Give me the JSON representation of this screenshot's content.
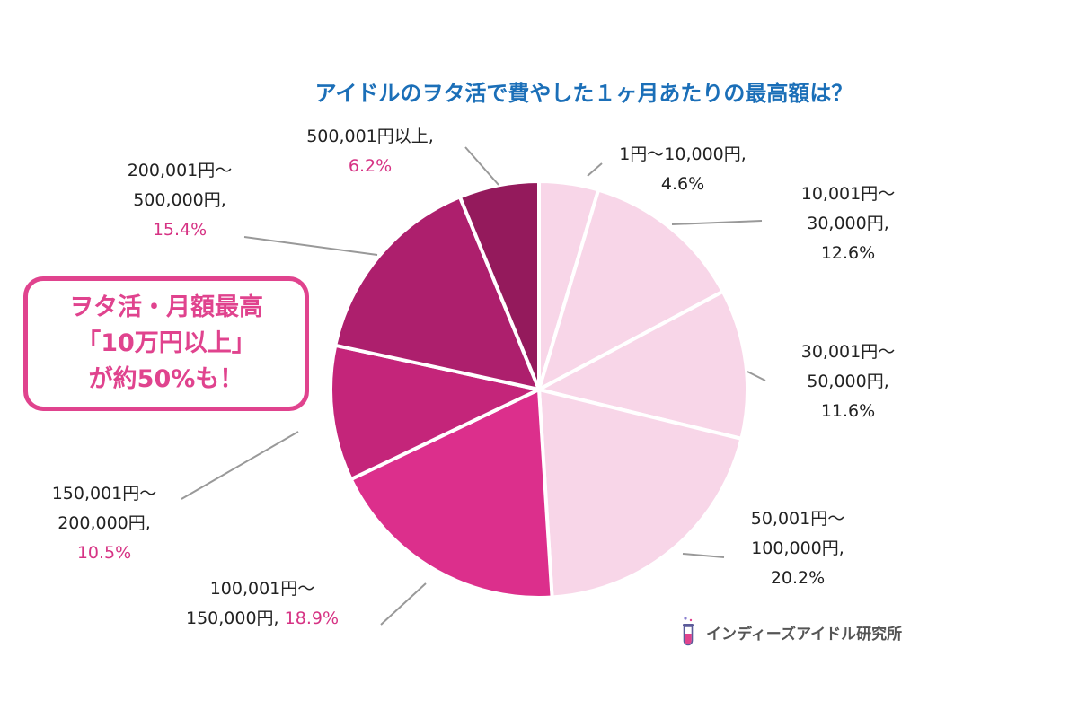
{
  "chart_data": {
    "type": "pie",
    "title": "アイドルのヲタ活で費やした１ヶ月あたりの最高額は？",
    "start_angle_deg": 0,
    "direction": "clockwise",
    "slices": [
      {
        "label_lines": [
          "1円〜10,000円,"
        ],
        "pct": "4.6%",
        "value": 4.6,
        "color": "#f8d6e8",
        "pct_color": "dark"
      },
      {
        "label_lines": [
          "10,001円〜",
          "30,000円,"
        ],
        "pct": "12.6%",
        "value": 12.6,
        "color": "#f8d6e8",
        "pct_color": "dark"
      },
      {
        "label_lines": [
          "30,001円〜",
          "50,000円,"
        ],
        "pct": "11.6%",
        "value": 11.6,
        "color": "#f8d6e8",
        "pct_color": "dark"
      },
      {
        "label_lines": [
          "50,001円〜",
          "100,000円,"
        ],
        "pct": "20.2%",
        "value": 20.2,
        "color": "#f8d6e8",
        "pct_color": "dark"
      },
      {
        "label_lines": [
          "100,001円〜",
          "150,000円,"
        ],
        "pct": "18.9%",
        "value": 18.9,
        "color": "#dc2f8c",
        "pct_color": "pink"
      },
      {
        "label_lines": [
          "150,001円〜",
          "200,000円,"
        ],
        "pct": "10.5%",
        "value": 10.5,
        "color": "#c4257a",
        "pct_color": "pink"
      },
      {
        "label_lines": [
          "200,001円〜",
          "500,000円,"
        ],
        "pct": "15.4%",
        "value": 15.4,
        "color": "#ad1f6d",
        "pct_color": "pink"
      },
      {
        "label_lines": [
          "500,001円以上,"
        ],
        "pct": "6.2%",
        "value": 6.2,
        "color": "#941a5c",
        "pct_color": "pink"
      }
    ],
    "colors": {
      "pink_text": "#d63384",
      "dark_text": "#222222",
      "line": "#999999",
      "title": "#1b6fb8"
    }
  },
  "callout": {
    "lines": [
      "ヲタ活・月額最高",
      "「10万円以上」",
      "が約50%も！"
    ],
    "color": "#e0438e"
  },
  "credit": {
    "text": "インディーズアイドル研究所",
    "icon": "test-tube-icon"
  }
}
